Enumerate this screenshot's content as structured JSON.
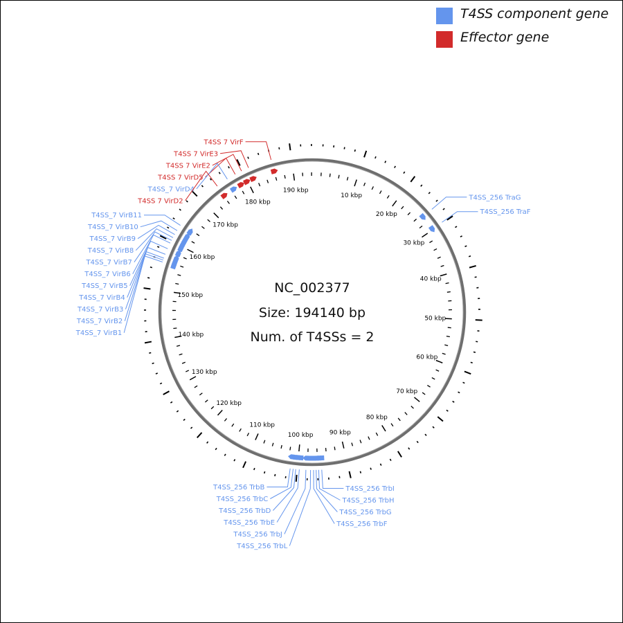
{
  "legend": {
    "component": {
      "label": "T4SS component gene",
      "color": "#6495ed"
    },
    "effector": {
      "label": "Effector gene",
      "color": "#d22b2b"
    }
  },
  "center": {
    "accession": "NC_002377",
    "size_text": "Size: 194140 bp",
    "count_text": "Num. of T4SSs = 2"
  },
  "genome": {
    "length_bp": 194140,
    "tick_interval_kbp": 10
  },
  "kbp_labels": [
    "10 kbp",
    "20 kbp",
    "30 kbp",
    "40 kbp",
    "50 kbp",
    "60 kbp",
    "70 kbp",
    "80 kbp",
    "90 kbp",
    "100 kbp",
    "110 kbp",
    "120 kbp",
    "130 kbp",
    "140 kbp",
    "150 kbp",
    "160 kbp",
    "170 kbp",
    "180 kbp",
    "190 kbp"
  ],
  "genes": [
    {
      "label": "T4SS_256 TraG",
      "kind": "component",
      "kbp": 26.6
    },
    {
      "label": "T4SS_256 TraF",
      "kind": "component",
      "kbp": 29.8
    },
    {
      "label": "T4SS_256 TrbI",
      "kind": "component",
      "kbp": 95.2
    },
    {
      "label": "T4SS_256 TrbH",
      "kind": "component",
      "kbp": 95.8
    },
    {
      "label": "T4SS_256 TrbG",
      "kind": "component",
      "kbp": 96.3
    },
    {
      "label": "T4SS_256 TrbF",
      "kind": "component",
      "kbp": 96.8
    },
    {
      "label": "T4SS_256 TrbL",
      "kind": "component",
      "kbp": 97.4
    },
    {
      "label": "T4SS_256 TrbJ",
      "kind": "component",
      "kbp": 98.3
    },
    {
      "label": "T4SS_256 TrbE",
      "kind": "component",
      "kbp": 99.6
    },
    {
      "label": "T4SS_256 TrbD",
      "kind": "component",
      "kbp": 100.3
    },
    {
      "label": "T4SS_256 TrbC",
      "kind": "component",
      "kbp": 100.8
    },
    {
      "label": "T4SS_256 TrbB",
      "kind": "component",
      "kbp": 101.4
    },
    {
      "label": "T4SS_7 VirB1",
      "kind": "component",
      "kbp": 155.6
    },
    {
      "label": "T4SS_7 VirB2",
      "kind": "component",
      "kbp": 156.0
    },
    {
      "label": "T4SS_7 VirB3",
      "kind": "component",
      "kbp": 156.4
    },
    {
      "label": "T4SS_7 VirB4",
      "kind": "component",
      "kbp": 157.2
    },
    {
      "label": "T4SS_7 VirB5",
      "kind": "component",
      "kbp": 158.4
    },
    {
      "label": "T4SS_7 VirB6",
      "kind": "component",
      "kbp": 159.6
    },
    {
      "label": "T4SS_7 VirB7",
      "kind": "component",
      "kbp": 160.2
    },
    {
      "label": "T4SS_7 VirB8",
      "kind": "component",
      "kbp": 160.8
    },
    {
      "label": "T4SS_7 VirB9",
      "kind": "component",
      "kbp": 161.5
    },
    {
      "label": "T4SS_7 VirB10",
      "kind": "component",
      "kbp": 162.4
    },
    {
      "label": "T4SS_7 VirB11",
      "kind": "component",
      "kbp": 163.6
    },
    {
      "label": "T4SS 7 VirD2",
      "kind": "effector",
      "kbp": 174.2
    },
    {
      "label": "T4SS_7 VirD4",
      "kind": "component",
      "kbp": 176.6
    },
    {
      "label": "T4SS 7 VirD5",
      "kind": "effector",
      "kbp": 178.4
    },
    {
      "label": "T4SS 7 VirE2",
      "kind": "effector",
      "kbp": 179.8
    },
    {
      "label": "T4SS 7 VirE3",
      "kind": "effector",
      "kbp": 181.3
    },
    {
      "label": "T4SS 7 VirF",
      "kind": "effector",
      "kbp": 186.0
    }
  ]
}
